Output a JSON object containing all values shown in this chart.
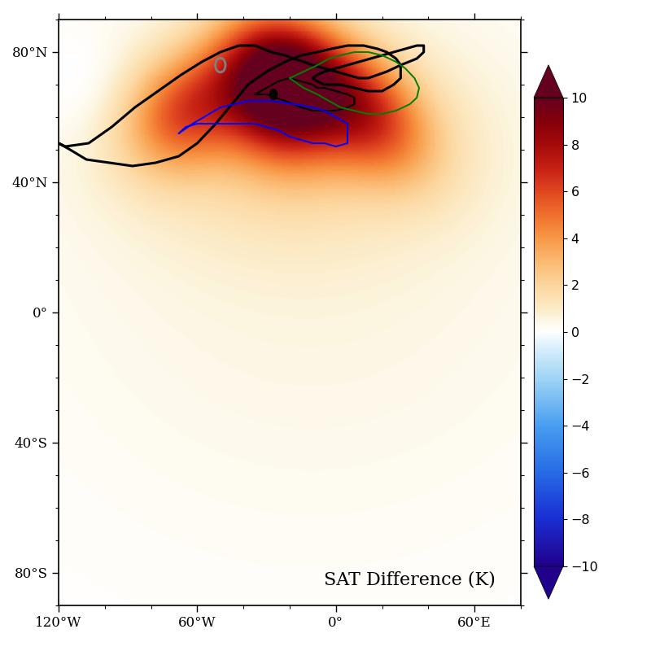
{
  "cbar_label": "SAT Difference (K)",
  "xlim": [
    -120,
    80
  ],
  "ylim": [
    -90,
    90
  ],
  "xticks": [
    -120,
    -60,
    0,
    60
  ],
  "yticks": [
    -80,
    -40,
    0,
    40,
    80
  ],
  "xticklabels": [
    "120°W",
    "60°W",
    "0°",
    "60°E"
  ],
  "yticklabels": [
    "80°S",
    "40°S",
    "0°",
    "40°N",
    "80°N"
  ],
  "cmap_vmin": -10,
  "cmap_vmax": 10,
  "figsize": [
    8.0,
    8.0
  ],
  "dpi": 100,
  "warm_peak_lon": -25,
  "warm_peak_lat": 68,
  "gray_circle_lon": -50,
  "gray_circle_lat": 76,
  "black_dot_lon": -27,
  "black_dot_lat": 67,
  "colormap_colors": [
    [
      -10,
      [
        0.13,
        0.0,
        0.55
      ]
    ],
    [
      -8,
      [
        0.1,
        0.18,
        0.82
      ]
    ],
    [
      -6,
      [
        0.15,
        0.42,
        0.9
      ]
    ],
    [
      -4,
      [
        0.28,
        0.62,
        0.94
      ]
    ],
    [
      -2,
      [
        0.62,
        0.83,
        0.96
      ]
    ],
    [
      -0.5,
      [
        0.88,
        0.95,
        0.99
      ]
    ],
    [
      0,
      [
        1.0,
        1.0,
        1.0
      ]
    ],
    [
      0.5,
      [
        0.99,
        0.97,
        0.9
      ]
    ],
    [
      1,
      [
        0.99,
        0.92,
        0.78
      ]
    ],
    [
      2,
      [
        0.99,
        0.84,
        0.62
      ]
    ],
    [
      3,
      [
        0.98,
        0.73,
        0.45
      ]
    ],
    [
      4,
      [
        0.97,
        0.6,
        0.28
      ]
    ],
    [
      5,
      [
        0.94,
        0.44,
        0.18
      ]
    ],
    [
      6,
      [
        0.88,
        0.28,
        0.13
      ]
    ],
    [
      7,
      [
        0.78,
        0.13,
        0.08
      ]
    ],
    [
      8,
      [
        0.65,
        0.04,
        0.04
      ]
    ],
    [
      9,
      [
        0.52,
        0.0,
        0.04
      ]
    ],
    [
      10,
      [
        0.4,
        0.0,
        0.12
      ]
    ]
  ]
}
